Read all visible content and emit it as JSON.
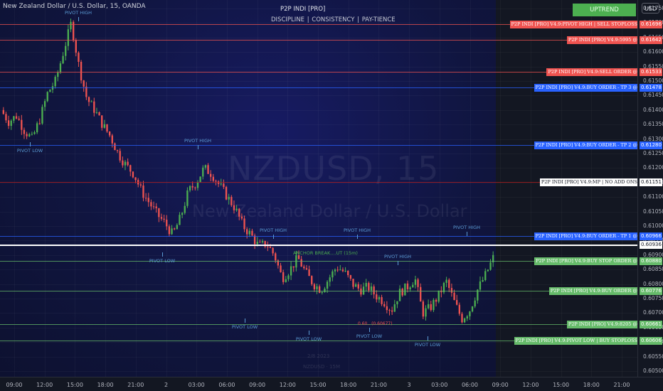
{
  "header": {
    "symbol": "New Zealand Dollar / U.S. Dollar, 15, OANDA",
    "indicator_title": "P2P INDI [PRO]",
    "indicator_subtitle": "DISCIPLINE  |  CONSISTENCY  |  PAY-TIENCE",
    "trend_button": "UPTREND",
    "currency_button": "USD"
  },
  "watermark": {
    "symbol": "NZDUSD, 15",
    "name": "New Zealand Dollar / U.S. Dollar",
    "date": "2/8 2023",
    "pair": "NZDUSD · 15M"
  },
  "colors": {
    "up": "#4caf50",
    "down": "#ef5350",
    "sell": "#ef5350",
    "buy_tp": "#2962ff",
    "buy_green": "#66bb6a",
    "pivot": "#5b9bd5"
  },
  "chart_data": {
    "type": "candlestick",
    "symbol": "NZDUSD",
    "timeframe": "15",
    "ylim": [
      0.605,
      0.6175
    ],
    "y_ticks": [
      "0.61750",
      "0.61700",
      "0.61650",
      "0.61600",
      "0.61550",
      "0.61500",
      "0.61450",
      "0.61400",
      "0.61350",
      "0.61300",
      "0.61250",
      "0.61200",
      "0.61150",
      "0.61100",
      "0.61050",
      "0.61000",
      "0.60950",
      "0.60900",
      "0.60850",
      "0.60800",
      "0.60750",
      "0.60700",
      "0.60650",
      "0.60600",
      "0.60550",
      "0.60500"
    ],
    "x_ticks": [
      "09:00",
      "12:00",
      "15:00",
      "18:00",
      "21:00",
      "2",
      "03:00",
      "06:00",
      "09:00",
      "12:00",
      "15:00",
      "18:00",
      "21:00",
      "3",
      "03:00",
      "06:00",
      "09:00",
      "12:00",
      "15:00",
      "18:00",
      "21:00"
    ],
    "close_path": [
      0.614,
      0.6136,
      0.6138,
      0.6133,
      0.613,
      0.6137,
      0.6146,
      0.615,
      0.616,
      0.617,
      0.6155,
      0.6144,
      0.614,
      0.6135,
      0.6131,
      0.6125,
      0.6121,
      0.6118,
      0.6112,
      0.6108,
      0.6104,
      0.6101,
      0.6097,
      0.6103,
      0.6112,
      0.6115,
      0.612,
      0.6118,
      0.6114,
      0.611,
      0.6106,
      0.61,
      0.6097,
      0.6093,
      0.6094,
      0.609,
      0.6082,
      0.6085,
      0.6089,
      0.6084,
      0.608,
      0.6078,
      0.6082,
      0.6086,
      0.6084,
      0.608,
      0.6078,
      0.6079,
      0.6076,
      0.6074,
      0.6071,
      0.6077,
      0.6079,
      0.6082,
      0.607,
      0.6072,
      0.6076,
      0.6081,
      0.6074,
      0.6068,
      0.6071,
      0.6078,
      0.6083,
      0.6089
    ],
    "lines": [
      {
        "label": "P2P INDI [PRO] V4.9:PIVOT HIGH | SELL STOPLOSS",
        "price": "0.61696",
        "value": 0.61696,
        "kind": "sell"
      },
      {
        "label": "P2P INDI [PRO] V4.9:5995 @",
        "price": "0.61642",
        "value": 0.61642,
        "kind": "sell"
      },
      {
        "label": "P2P INDI [PRO] V4.9:SELL ORDER @",
        "price": "0.61533",
        "value": 0.61533,
        "kind": "sell"
      },
      {
        "label": "P2P INDI [PRO] V4.9:BUY ORDER - TP 3 @",
        "price": "0.61478",
        "value": 0.61478,
        "kind": "tp"
      },
      {
        "label": "P2P INDI [PRO] V4.9:BUY ORDER - TP 2 @",
        "price": "0.61280",
        "value": 0.6128,
        "kind": "tp"
      },
      {
        "label": "P2P INDI [PRO] V4.9:MP | NO ADD ONS",
        "price": "0.61151",
        "value": 0.61151,
        "kind": "mp"
      },
      {
        "label": "P2P INDI [PRO] V4.9:BUY ORDER - TP 1 @",
        "price": "0.60966",
        "value": 0.60966,
        "kind": "tp"
      },
      {
        "label": "",
        "price": "0.60936",
        "value": 0.60936,
        "kind": "anchor"
      },
      {
        "label": "P2P INDI [PRO] V4.9:BUY STOP ORDER @",
        "price": "0.60880",
        "value": 0.6088,
        "kind": "buy"
      },
      {
        "label": "P2P INDI [PRO] V4.9:BUY ORDER @",
        "price": "0.60776",
        "value": 0.60776,
        "kind": "buy"
      },
      {
        "label": "P2P INDI [PRO] V4.9:8205 @",
        "price": "0.60661",
        "value": 0.60661,
        "kind": "buy"
      },
      {
        "label": "P2P INDI [PRO] V4.9:PIVOT LOW | BUY STOPLOSS",
        "price": "0.60606",
        "value": 0.60606,
        "kind": "buy"
      }
    ],
    "anchor_label": "ANCHOR BREAK....UT (15m)",
    "be_label": "0.60.. (0.60677)",
    "pivots": [
      {
        "text": "PIVOT HIGH",
        "type": "high",
        "value": 0.6169
      },
      {
        "text": "PIVOT LOW",
        "type": "low",
        "value": 0.613
      },
      {
        "text": "PIVOT HIGH",
        "type": "high",
        "value": 0.6125
      },
      {
        "text": "PIVOT LOW",
        "type": "low",
        "value": 0.6092
      },
      {
        "text": "PIVOT HIGH",
        "type": "high",
        "value": 0.6094
      },
      {
        "text": "PIVOT LOW",
        "type": "low",
        "value": 0.6069
      },
      {
        "text": "PIVOT LOW",
        "type": "low",
        "value": 0.6065
      },
      {
        "text": "PIVOT HIGH",
        "type": "high",
        "value": 0.6094
      },
      {
        "text": "PIVOT HIGH",
        "type": "high",
        "value": 0.6085
      },
      {
        "text": "PIVOT LOW",
        "type": "low",
        "value": 0.6066
      },
      {
        "text": "PIVOT LOW",
        "type": "low",
        "value": 0.6063
      },
      {
        "text": "PIVOT HIGH",
        "type": "high",
        "value": 0.6095
      }
    ]
  }
}
